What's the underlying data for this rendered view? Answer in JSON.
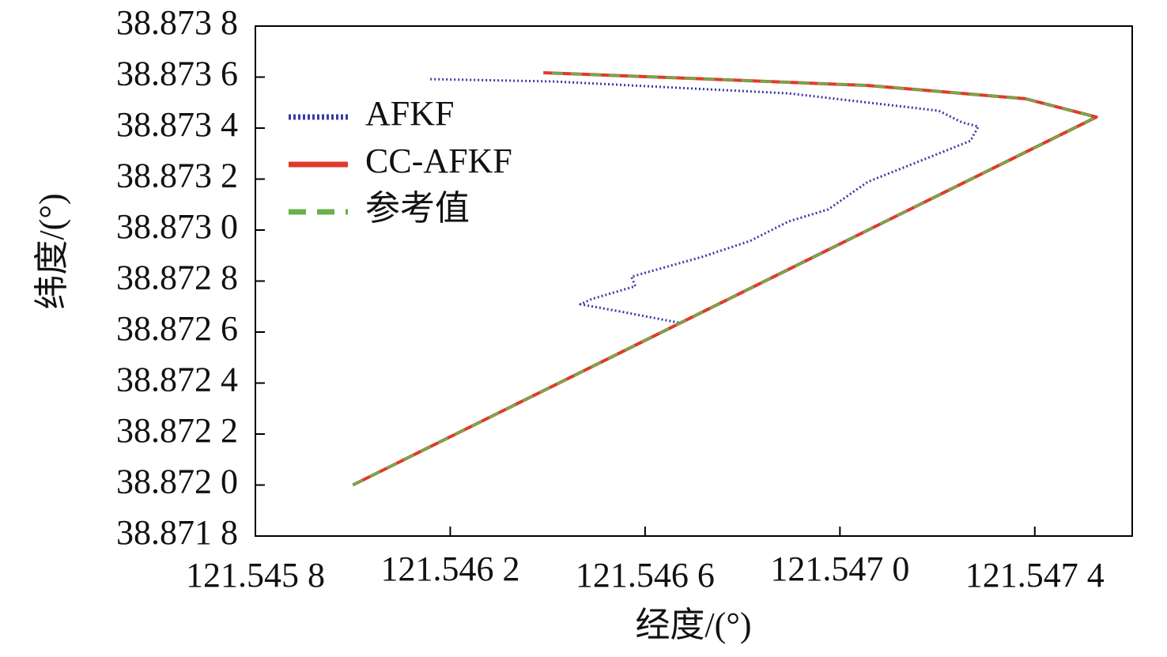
{
  "chart_data": {
    "type": "line",
    "xlabel": "经度/(°)",
    "ylabel": "纬度/(°)",
    "xlim": [
      121.5458,
      121.5476
    ],
    "ylim": [
      38.8718,
      38.8738
    ],
    "xticks": [
      {
        "value": 121.5458,
        "label": "121.545 8"
      },
      {
        "value": 121.5462,
        "label": "121.546 2"
      },
      {
        "value": 121.5466,
        "label": "121.546 6"
      },
      {
        "value": 121.547,
        "label": "121.547 0"
      },
      {
        "value": 121.5474,
        "label": "121.547 4"
      }
    ],
    "yticks": [
      {
        "value": 38.8718,
        "label": "38.871 8"
      },
      {
        "value": 38.872,
        "label": "38.872 0"
      },
      {
        "value": 38.8722,
        "label": "38.872 2"
      },
      {
        "value": 38.8724,
        "label": "38.872 4"
      },
      {
        "value": 38.8726,
        "label": "38.872 6"
      },
      {
        "value": 38.8728,
        "label": "38.872 8"
      },
      {
        "value": 38.873,
        "label": "38.873 0"
      },
      {
        "value": 38.8732,
        "label": "38.873 2"
      },
      {
        "value": 38.8734,
        "label": "38.873 4"
      },
      {
        "value": 38.8736,
        "label": "38.873 6"
      },
      {
        "value": 38.8738,
        "label": "38.873 8"
      }
    ],
    "legend": "upper left",
    "series": [
      {
        "name": "AFKF",
        "color": "#3b3ba6",
        "style": "dotted",
        "x": [
          121.546159,
          121.54641,
          121.546895,
          121.547203,
          121.547251,
          121.547284,
          121.547268,
          121.547187,
          121.547057,
          121.546976,
          121.546895,
          121.546815,
          121.546717,
          121.546572,
          121.54658,
          121.546491,
          121.546467,
          121.546556,
          121.546669
        ],
        "values": [
          38.873592,
          38.873583,
          38.873536,
          38.873468,
          38.873422,
          38.873406,
          38.87335,
          38.873288,
          38.873189,
          38.873081,
          38.873034,
          38.872957,
          38.872895,
          38.872817,
          38.87278,
          38.87273,
          38.872709,
          38.872678,
          38.872637
        ]
      },
      {
        "name": "CC-AFKF",
        "color": "#e0392b",
        "style": "solid",
        "x": [
          121.546,
          121.5475265,
          121.547381,
          121.547057,
          121.546734,
          121.546391
        ],
        "values": [
          38.872,
          38.873443,
          38.873515,
          38.873567,
          38.873592,
          38.873617
        ]
      },
      {
        "name": "参考值",
        "color": "#6ab04c",
        "style": "dashed",
        "x": [
          121.546,
          121.5475265,
          121.547381,
          121.547057,
          121.546734,
          121.546391
        ],
        "values": [
          38.872,
          38.873443,
          38.873515,
          38.873567,
          38.873592,
          38.873617
        ]
      }
    ]
  }
}
